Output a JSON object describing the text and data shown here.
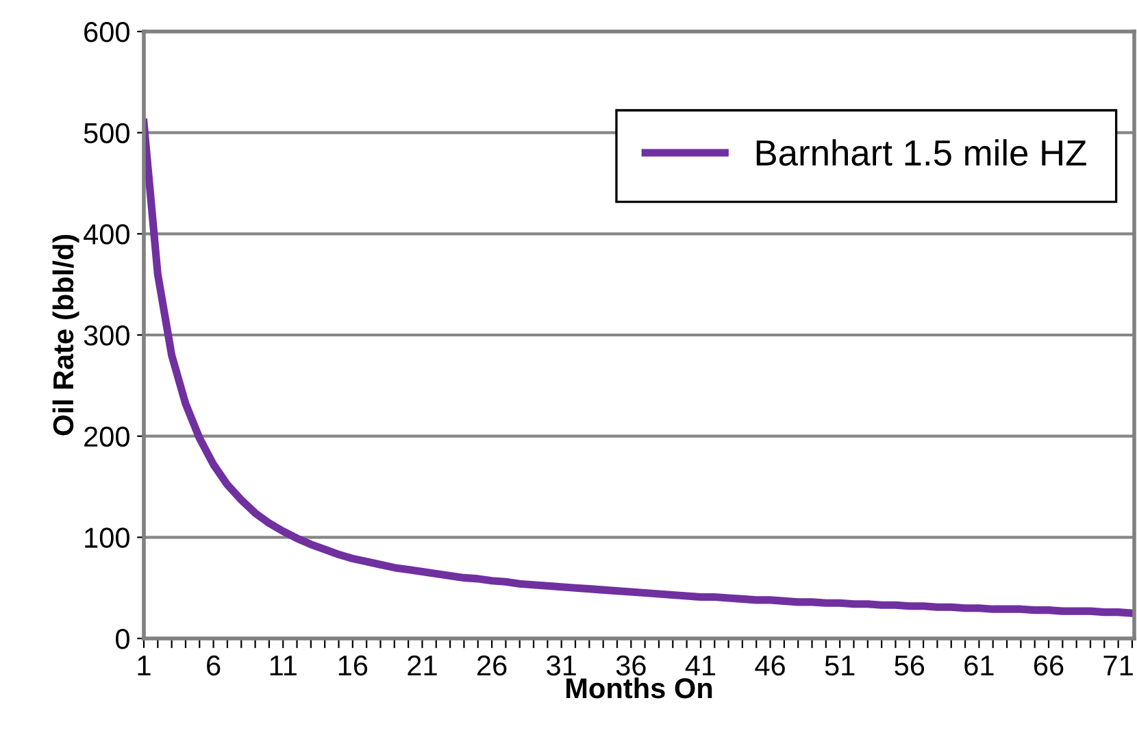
{
  "chart_data": {
    "type": "line",
    "xlabel": "Months On",
    "ylabel": "Oil Rate (bbl/d)",
    "categories": [
      "1",
      null,
      null,
      null,
      null,
      "6",
      null,
      null,
      null,
      null,
      "11",
      null,
      null,
      null,
      null,
      "16",
      null,
      null,
      null,
      null,
      "21",
      null,
      null,
      null,
      null,
      "26",
      null,
      null,
      null,
      null,
      "31",
      null,
      null,
      null,
      null,
      "36",
      null,
      null,
      null,
      null,
      "41",
      null,
      null,
      null,
      null,
      "46",
      null,
      null,
      null,
      null,
      "51",
      null,
      null,
      null,
      null,
      "56",
      null,
      null,
      null,
      null,
      "61",
      null,
      null,
      null,
      null,
      "66",
      null,
      null,
      null,
      null,
      "71",
      null
    ],
    "series": [
      {
        "name": "Barnhart 1.5 mile HZ",
        "color": "#7030a0",
        "values": [
          510,
          360,
          280,
          232,
          198,
          172,
          152,
          137,
          124,
          114,
          106,
          99,
          93,
          88,
          83,
          79,
          76,
          73,
          70,
          68,
          66,
          64,
          62,
          60,
          59,
          57,
          56,
          54,
          53,
          52,
          51,
          50,
          49,
          48,
          47,
          46,
          45,
          44,
          43,
          42,
          41,
          41,
          40,
          39,
          38,
          38,
          37,
          36,
          36,
          35,
          35,
          34,
          34,
          33,
          33,
          32,
          32,
          31,
          31,
          30,
          30,
          29,
          29,
          29,
          28,
          28,
          27,
          27,
          27,
          26,
          26,
          25
        ]
      }
    ],
    "ylim": [
      0,
      600
    ],
    "yticks": [
      0,
      100,
      200,
      300,
      400,
      500,
      600
    ],
    "grid": "y",
    "legend": "top right",
    "marker": "none",
    "line_style": "solid"
  }
}
